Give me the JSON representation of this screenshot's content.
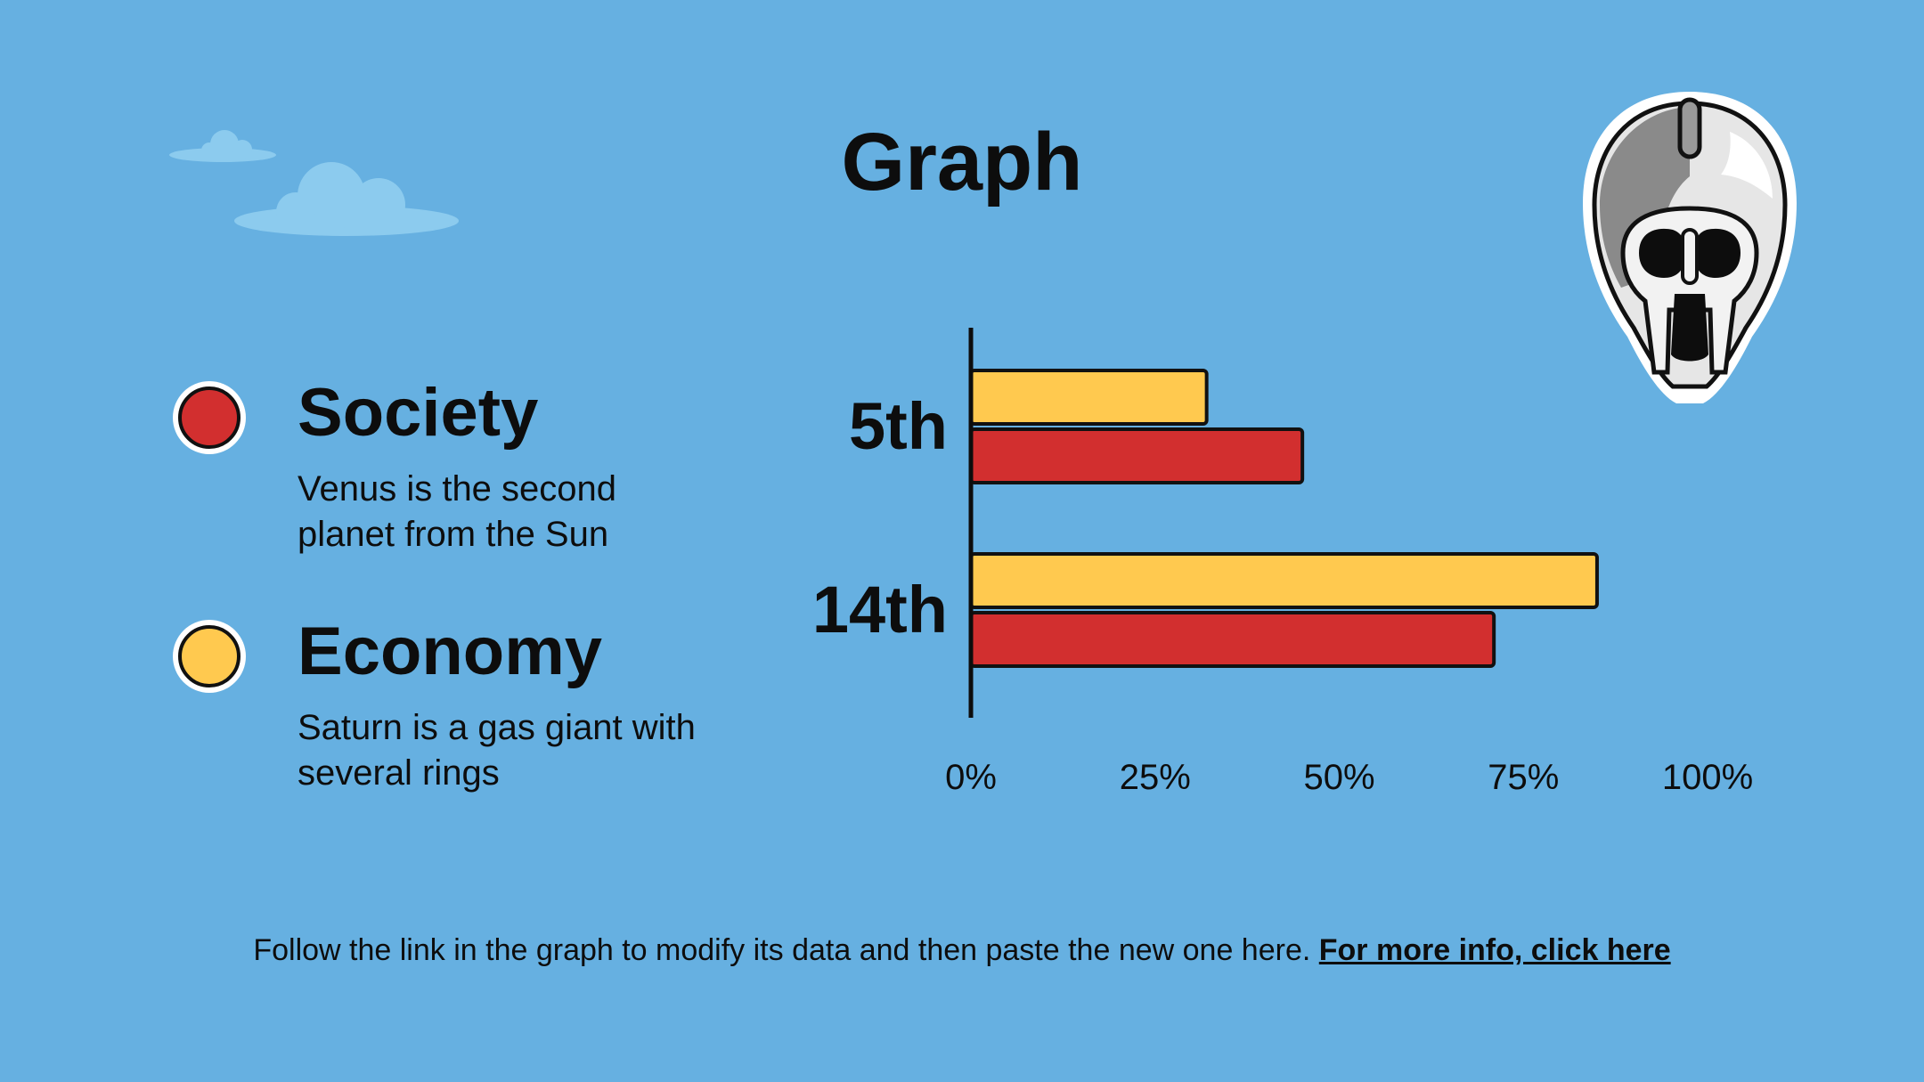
{
  "slide": {
    "title": "Graph",
    "background_color": "#66b0e1"
  },
  "legend": [
    {
      "name": "Society",
      "description": "Venus is the second planet from the Sun",
      "color": "#d22f2f"
    },
    {
      "name": "Economy",
      "description": "Saturn is a gas giant with several rings",
      "color": "#ffc94f"
    }
  ],
  "chart_data": {
    "type": "bar",
    "orientation": "horizontal",
    "categories": [
      "5th",
      "14th"
    ],
    "series": [
      {
        "name": "Economy",
        "color": "#ffc94f",
        "values": [
          32,
          85
        ]
      },
      {
        "name": "Society",
        "color": "#d22f2f",
        "values": [
          45,
          71
        ]
      }
    ],
    "xlim": [
      0,
      100
    ],
    "xticks": [
      "0%",
      "25%",
      "50%",
      "75%",
      "100%"
    ],
    "grid": false
  },
  "footer": {
    "text": "Follow the link in the graph to modify its data and then paste the new one here.",
    "link_label": "For more info, click here"
  },
  "decorations": {
    "icons": [
      "cloud-icon",
      "helmet-icon"
    ]
  }
}
